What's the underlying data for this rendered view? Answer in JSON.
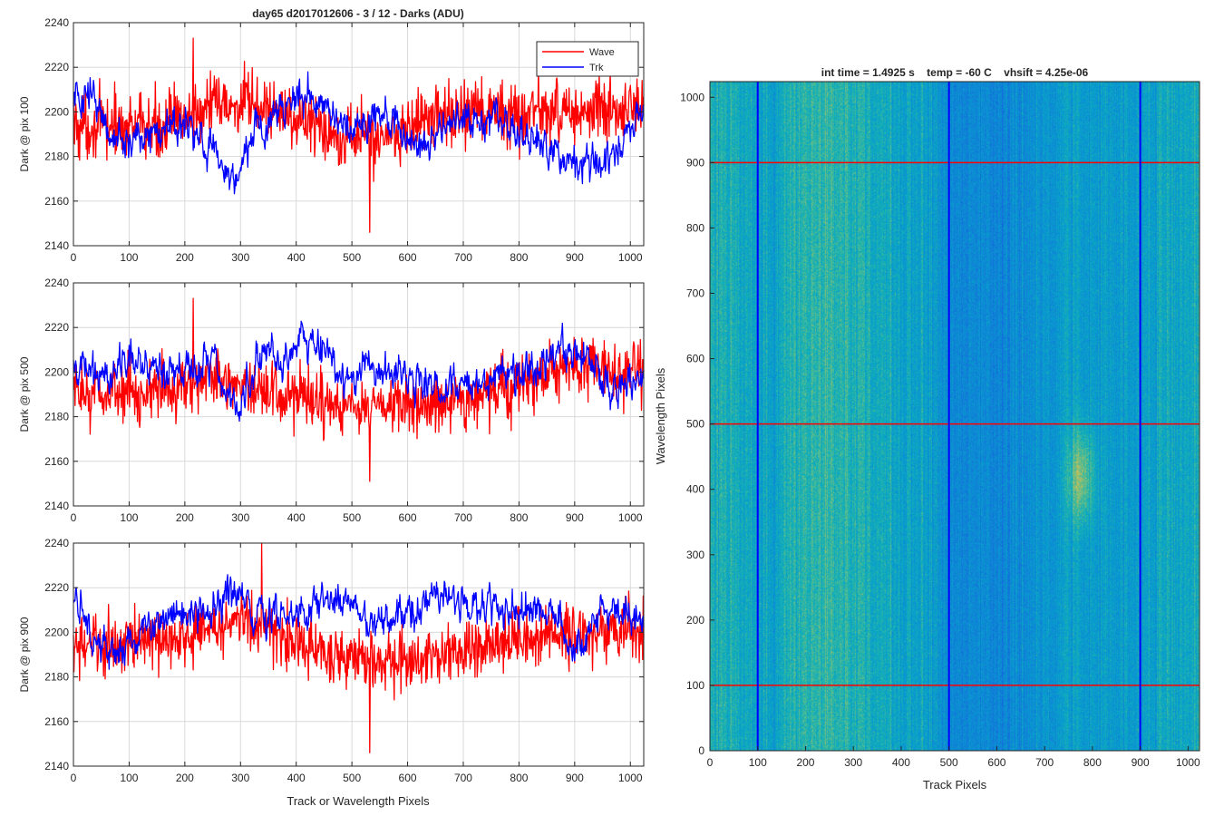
{
  "figure": {
    "suptitle": "day65 d2017012606 - 3 / 12 - Darks (ADU)"
  },
  "colors": {
    "wave": "#ff0000",
    "trk": "#0000ff",
    "grid": "#d9d9d9",
    "axis": "#262626"
  },
  "chart_data": [
    {
      "type": "line",
      "ylabel": "Dark @ pix 100",
      "xlabel": "",
      "xlim": [
        0,
        1024
      ],
      "ylim": [
        2140,
        2240
      ],
      "xticks": [
        0,
        100,
        200,
        300,
        400,
        500,
        600,
        700,
        800,
        900,
        1000
      ],
      "yticks": [
        2140,
        2160,
        2180,
        2200,
        2220,
        2240
      ],
      "grid": true,
      "legend_placement": "top-right",
      "series": [
        {
          "name": "Wave",
          "color": "#ff0000",
          "mean": 2196,
          "noise": 12,
          "extremes": [
            2146,
            2233
          ],
          "trend": [
            [
              0,
              2194
            ],
            [
              150,
              2193
            ],
            [
              250,
              2203
            ],
            [
              350,
              2202
            ],
            [
              450,
              2192
            ],
            [
              550,
              2188
            ],
            [
              650,
              2198
            ],
            [
              750,
              2199
            ],
            [
              850,
              2200
            ],
            [
              1024,
              2200
            ]
          ]
        },
        {
          "name": "Trk",
          "color": "#0000ff",
          "noise": 5,
          "trend": [
            [
              0,
              2206
            ],
            [
              30,
              2208
            ],
            [
              60,
              2190
            ],
            [
              120,
              2188
            ],
            [
              200,
              2193
            ],
            [
              250,
              2184
            ],
            [
              280,
              2169
            ],
            [
              320,
              2188
            ],
            [
              380,
              2205
            ],
            [
              420,
              2208
            ],
            [
              460,
              2200
            ],
            [
              500,
              2193
            ],
            [
              560,
              2199
            ],
            [
              620,
              2183
            ],
            [
              700,
              2196
            ],
            [
              760,
              2198
            ],
            [
              800,
              2190
            ],
            [
              880,
              2181
            ],
            [
              940,
              2175
            ],
            [
              980,
              2184
            ],
            [
              1024,
              2203
            ]
          ]
        }
      ]
    },
    {
      "type": "line",
      "ylabel": "Dark @ pix 500",
      "xlabel": "",
      "xlim": [
        0,
        1024
      ],
      "ylim": [
        2140,
        2240
      ],
      "xticks": [
        0,
        100,
        200,
        300,
        400,
        500,
        600,
        700,
        800,
        900,
        1000
      ],
      "yticks": [
        2140,
        2160,
        2180,
        2200,
        2220,
        2240
      ],
      "grid": true,
      "series": [
        {
          "name": "Wave",
          "color": "#ff0000",
          "mean": 2190,
          "noise": 11,
          "extremes": [
            2151,
            2233
          ],
          "trend": [
            [
              0,
              2190
            ],
            [
              150,
              2192
            ],
            [
              260,
              2198
            ],
            [
              350,
              2190
            ],
            [
              500,
              2183
            ],
            [
              600,
              2185
            ],
            [
              700,
              2188
            ],
            [
              800,
              2194
            ],
            [
              900,
              2202
            ],
            [
              1024,
              2200
            ]
          ]
        },
        {
          "name": "Trk",
          "color": "#0000ff",
          "noise": 5,
          "trend": [
            [
              0,
              2198
            ],
            [
              60,
              2201
            ],
            [
              120,
              2205
            ],
            [
              200,
              2198
            ],
            [
              250,
              2208
            ],
            [
              290,
              2183
            ],
            [
              350,
              2212
            ],
            [
              380,
              2204
            ],
            [
              410,
              2214
            ],
            [
              460,
              2206
            ],
            [
              480,
              2193
            ],
            [
              520,
              2203
            ],
            [
              580,
              2200
            ],
            [
              640,
              2194
            ],
            [
              700,
              2193
            ],
            [
              800,
              2200
            ],
            [
              880,
              2210
            ],
            [
              920,
              2207
            ],
            [
              960,
              2191
            ],
            [
              1024,
              2198
            ]
          ]
        }
      ]
    },
    {
      "type": "line",
      "ylabel": "Dark @ pix 900",
      "xlabel": "Track or Wavelength Pixels",
      "xlim": [
        0,
        1024
      ],
      "ylim": [
        2140,
        2240
      ],
      "xticks": [
        0,
        100,
        200,
        300,
        400,
        500,
        600,
        700,
        800,
        900,
        1000
      ],
      "yticks": [
        2140,
        2160,
        2180,
        2200,
        2220,
        2240
      ],
      "grid": true,
      "series": [
        {
          "name": "Wave",
          "color": "#ff0000",
          "mean": 2193,
          "noise": 11,
          "extremes": [
            2146,
            2240
          ],
          "trend": [
            [
              0,
              2193
            ],
            [
              200,
              2198
            ],
            [
              300,
              2206
            ],
            [
              400,
              2196
            ],
            [
              500,
              2188
            ],
            [
              600,
              2186
            ],
            [
              700,
              2192
            ],
            [
              800,
              2196
            ],
            [
              900,
              2200
            ],
            [
              1024,
              2200
            ]
          ]
        },
        {
          "name": "Trk",
          "color": "#0000ff",
          "noise": 5,
          "trend": [
            [
              0,
              2214
            ],
            [
              60,
              2190
            ],
            [
              150,
              2205
            ],
            [
              230,
              2208
            ],
            [
              280,
              2218
            ],
            [
              330,
              2208
            ],
            [
              400,
              2208
            ],
            [
              480,
              2216
            ],
            [
              520,
              2205
            ],
            [
              600,
              2209
            ],
            [
              650,
              2216
            ],
            [
              720,
              2212
            ],
            [
              800,
              2210
            ],
            [
              860,
              2209
            ],
            [
              900,
              2192
            ],
            [
              950,
              2210
            ],
            [
              1024,
              2204
            ]
          ]
        }
      ]
    },
    {
      "type": "heatmap",
      "title": "int time = 1.4925 s    temp = -60 C    vhsift = 4.25e-06",
      "xlabel": "Track Pixels",
      "ylabel": "Wavelength Pixels",
      "xlim": [
        0,
        1024
      ],
      "ylim": [
        0,
        1024
      ],
      "xticks": [
        0,
        100,
        200,
        300,
        400,
        500,
        600,
        700,
        800,
        900,
        1000
      ],
      "yticks": [
        0,
        100,
        200,
        300,
        400,
        500,
        600,
        700,
        800,
        900,
        1000
      ],
      "colormap": "parula",
      "horizontal_markers": [
        100,
        500,
        900
      ],
      "vertical_markers": [
        100,
        500,
        900
      ],
      "marker_colors": {
        "horizontal": "#ff0000",
        "vertical": "#0000ff"
      },
      "column_level": [
        [
          0,
          0.6
        ],
        [
          60,
          0.58
        ],
        [
          100,
          0.52
        ],
        [
          180,
          0.6
        ],
        [
          240,
          0.66
        ],
        [
          330,
          0.6
        ],
        [
          450,
          0.52
        ],
        [
          520,
          0.42
        ],
        [
          600,
          0.4
        ],
        [
          700,
          0.46
        ],
        [
          760,
          0.52
        ],
        [
          850,
          0.5
        ],
        [
          950,
          0.55
        ],
        [
          1024,
          0.6
        ]
      ],
      "hotspot": {
        "x": 775,
        "y": 420,
        "level": 0.82
      }
    }
  ]
}
